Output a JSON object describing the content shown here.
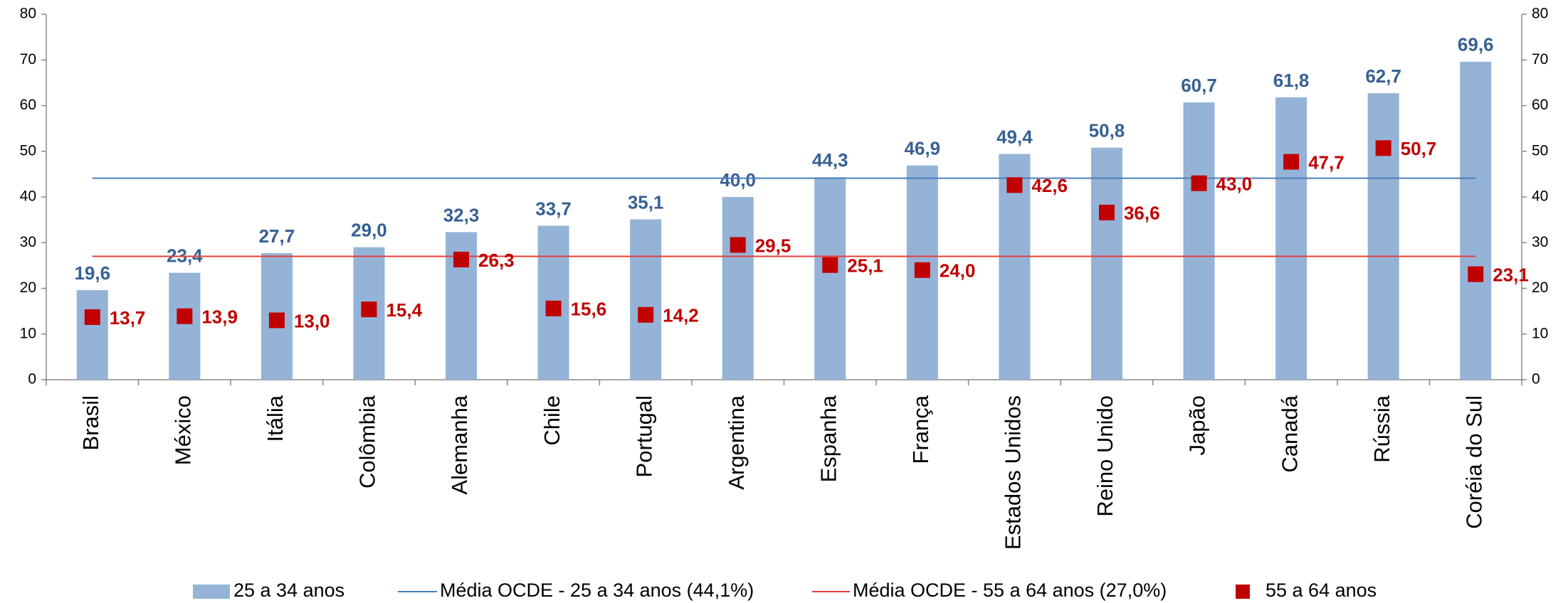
{
  "chart_data": {
    "type": "bar",
    "categories": [
      "Brasil",
      "México",
      "Itália",
      "Colômbia",
      "Alemanha",
      "Chile",
      "Portugal",
      "Argentina",
      "Espanha",
      "França",
      "Estados Unidos",
      "Reino Unido",
      "Japão",
      "Canadá",
      "Rússia",
      "Coréia do Sul"
    ],
    "series": [
      {
        "name": "25 a 34 anos",
        "type": "bar",
        "color": "#95b3d7",
        "label_color": "#376092",
        "values": [
          19.6,
          23.4,
          27.7,
          29.0,
          32.3,
          33.7,
          35.1,
          40.0,
          44.3,
          46.9,
          49.4,
          50.8,
          60.7,
          61.8,
          62.7,
          69.6
        ],
        "value_labels": [
          "19,6",
          "23,4",
          "27,7",
          "29,0",
          "32,3",
          "33,7",
          "35,1",
          "40,0",
          "44,3",
          "46,9",
          "49,4",
          "50,8",
          "60,7",
          "61,8",
          "62,7",
          "69,6"
        ]
      },
      {
        "name": "55 a 64 anos",
        "type": "scatter",
        "marker": "square",
        "color": "#c00000",
        "label_color": "#c00000",
        "values": [
          13.7,
          13.9,
          13.0,
          15.4,
          26.3,
          15.6,
          14.2,
          29.5,
          25.1,
          24.0,
          42.6,
          36.6,
          43.0,
          47.7,
          50.7,
          23.1
        ],
        "value_labels": [
          "13,7",
          "13,9",
          "13,0",
          "15,4",
          "26,3",
          "15,6",
          "14,2",
          "29,5",
          "25,1",
          "24,0",
          "42,6",
          "36,6",
          "43,0",
          "47,7",
          "50,7",
          "23,1"
        ]
      }
    ],
    "reference_lines": [
      {
        "name": "Média OCDE - 25 a 34 anos (44,1%)",
        "value": 44.1,
        "color": "#4a7ebb"
      },
      {
        "name": "Média OCDE - 55 a 64 anos (27,0%)",
        "value": 27.0,
        "color": "#e0403a"
      }
    ],
    "ylim": [
      0,
      80
    ],
    "yticks": [
      0,
      10,
      20,
      30,
      40,
      50,
      60,
      70,
      80
    ],
    "y2lim": [
      0,
      80
    ],
    "y2ticks": [
      0,
      10,
      20,
      30,
      40,
      50,
      60,
      70,
      80
    ],
    "grid": false,
    "legend": "bottom"
  }
}
